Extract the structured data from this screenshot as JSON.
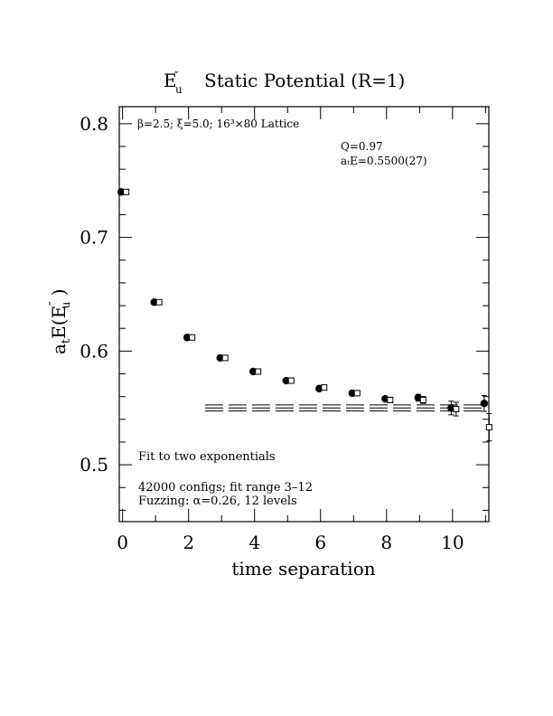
{
  "chart_data": {
    "type": "scatter",
    "title": "E″u  Static Potential (R=1)",
    "title_main": "E",
    "title_sup": "″",
    "title_sub": "u",
    "title_rest": "Static Potential (R=1)",
    "xlabel": "time separation",
    "ylabel": "aₜE(E″u )",
    "ylabel_parts": {
      "a": "a",
      "t": "t",
      "E1": "E(E",
      "prime": "″",
      "u": "u",
      "close": " )"
    },
    "xlim": [
      -0.1,
      11.1
    ],
    "ylim": [
      0.45,
      0.815
    ],
    "x_ticks": [
      0,
      2,
      4,
      6,
      8,
      10
    ],
    "y_ticks": [
      0.5,
      0.6,
      0.7,
      0.8
    ],
    "x_tick_labels": [
      "0",
      "2",
      "4",
      "6",
      "8",
      "10"
    ],
    "y_tick_labels": [
      "0.5",
      "0.6",
      "0.7",
      "0.8"
    ],
    "annotations": {
      "lattice": "β=2.5; ξ=5.0; 16³×80 Lattice",
      "q": "Q=0.97",
      "fit_energy": "aₜE=0.5500(27)",
      "fit_label": "Fit to two exponentials",
      "configs": "42000 configs; fit range 3–12",
      "fuzzing": "Fuzzing: α=0.26, 12 levels"
    },
    "series": [
      {
        "marker": "filled-circle",
        "x": [
          0,
          1,
          2,
          3,
          4,
          5,
          6,
          7,
          8,
          9,
          10,
          11
        ],
        "y": [
          0.74,
          0.643,
          0.612,
          0.594,
          0.582,
          0.574,
          0.567,
          0.563,
          0.558,
          0.559,
          0.55,
          0.554
        ],
        "err": [
          0.0005,
          0.0006,
          0.0006,
          0.0007,
          0.0008,
          0.0009,
          0.001,
          0.0012,
          0.0015,
          0.003,
          0.006,
          0.007
        ]
      },
      {
        "marker": "open-square",
        "x": [
          0,
          1,
          2,
          3,
          4,
          5,
          6,
          7,
          8,
          9,
          10,
          11
        ],
        "y": [
          0.74,
          0.643,
          0.612,
          0.594,
          0.582,
          0.574,
          0.568,
          0.563,
          0.557,
          0.557,
          0.549,
          0.533
        ],
        "err": [
          0.0005,
          0.0006,
          0.0006,
          0.0007,
          0.0008,
          0.0009,
          0.001,
          0.0012,
          0.0015,
          0.003,
          0.006,
          0.012
        ]
      }
    ],
    "fit": {
      "value": 0.55,
      "error": 0.0027,
      "x_range": [
        2.5,
        11
      ]
    }
  }
}
